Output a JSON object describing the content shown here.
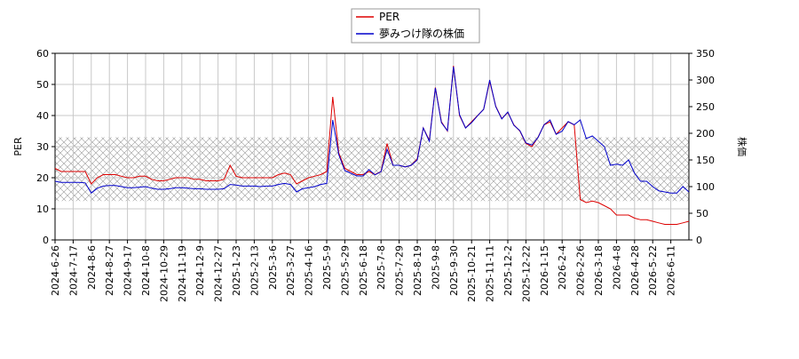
{
  "chart_data": {
    "type": "line",
    "x": [
      "2024-6-26",
      null,
      null,
      "2024-7-17",
      null,
      null,
      "2024-8-6",
      null,
      null,
      "2024-8-27",
      null,
      null,
      "2024-9-17",
      null,
      null,
      "2024-10-8",
      null,
      null,
      "2024-10-29",
      null,
      null,
      "2024-11-19",
      null,
      null,
      "2024-12-9",
      null,
      null,
      "2024-12-27",
      null,
      null,
      "2025-1-23",
      null,
      null,
      "2025-2-13",
      null,
      null,
      "2025-3-6",
      null,
      null,
      "2025-3-27",
      null,
      null,
      "2025-4-16",
      null,
      null,
      "2025-5-9",
      null,
      null,
      "2025-5-29",
      null,
      null,
      "2025-6-18",
      null,
      null,
      "2025-7-8",
      null,
      null,
      "2025-7-29",
      null,
      null,
      "2025-8-19",
      null,
      null,
      "2025-9-8",
      null,
      null,
      "2025-9-30",
      null,
      null,
      "2025-10-21",
      null,
      null,
      "2025-11-11",
      null,
      null,
      "2025-12-2",
      null,
      null,
      "2025-12-22",
      null,
      null,
      "2026-1-15",
      null,
      null,
      "2026-2-4",
      null,
      null,
      "2026-2-26",
      null,
      null,
      "2026-3-18",
      null,
      null,
      "2026-4-8",
      null,
      null,
      "2026-4-28",
      null,
      null,
      "2026-5-22",
      null,
      null,
      "2026-6-11",
      null,
      null,
      null
    ],
    "series": [
      {
        "name": "PER",
        "color": "#dd0000",
        "values": [
          23,
          22,
          22,
          22,
          22,
          22,
          18,
          20,
          21,
          21,
          21,
          20.5,
          20,
          20,
          20.5,
          20.5,
          19.5,
          19,
          19,
          19.5,
          20,
          20,
          20,
          19.5,
          19.5,
          19,
          19,
          19,
          19.5,
          24,
          20.5,
          20,
          20,
          20,
          20,
          20,
          20,
          21,
          21.5,
          21,
          18,
          19,
          20,
          20.5,
          21,
          22,
          46,
          28,
          23,
          22,
          21,
          21,
          22,
          21,
          22,
          31,
          24,
          24,
          23.5,
          24,
          26,
          36,
          32,
          49,
          38,
          35,
          56,
          40,
          36,
          38,
          40,
          42,
          51,
          43,
          39,
          41,
          37,
          35,
          31,
          30,
          33,
          37,
          38,
          34,
          36,
          38,
          37,
          13,
          12,
          12.5,
          12,
          11,
          10,
          8,
          8,
          8,
          7,
          6.5,
          6.5,
          6,
          5.5,
          5,
          5,
          5,
          5.5,
          6
        ]
      },
      {
        "name": "夢みつけ隊の株価",
        "color": "#0000cc",
        "axis": "y2",
        "values": [
          110,
          108,
          108,
          108,
          108,
          107,
          88,
          97,
          101,
          102,
          102,
          100,
          98,
          98,
          99,
          100,
          97,
          95,
          95,
          96,
          98,
          98,
          97,
          96,
          96,
          95,
          95,
          95,
          96,
          104,
          103,
          101,
          101,
          101,
          100,
          101,
          101,
          104,
          106,
          104,
          90,
          96,
          98,
          100,
          104,
          106,
          225,
          160,
          130,
          125,
          120,
          120,
          132,
          122,
          128,
          170,
          140,
          140,
          137,
          140,
          150,
          210,
          185,
          285,
          220,
          205,
          325,
          235,
          210,
          220,
          233,
          245,
          300,
          250,
          227,
          240,
          215,
          205,
          182,
          178,
          192,
          216,
          225,
          198,
          204,
          222,
          216,
          225,
          190,
          195,
          185,
          175,
          140,
          142,
          140,
          150,
          125,
          110,
          110,
          100,
          92,
          90,
          88,
          88,
          100,
          90
        ]
      }
    ],
    "ylabel": "PER",
    "y2label": "株価",
    "ylim": [
      0,
      60
    ],
    "yticks": [
      0,
      10,
      20,
      30,
      40,
      50,
      60
    ],
    "y2lim": [
      0,
      350
    ],
    "y2ticks": [
      0,
      50,
      100,
      150,
      200,
      250,
      300,
      350
    ],
    "shaded_range": [
      12.5,
      33
    ],
    "grid": true,
    "legend": "top"
  }
}
